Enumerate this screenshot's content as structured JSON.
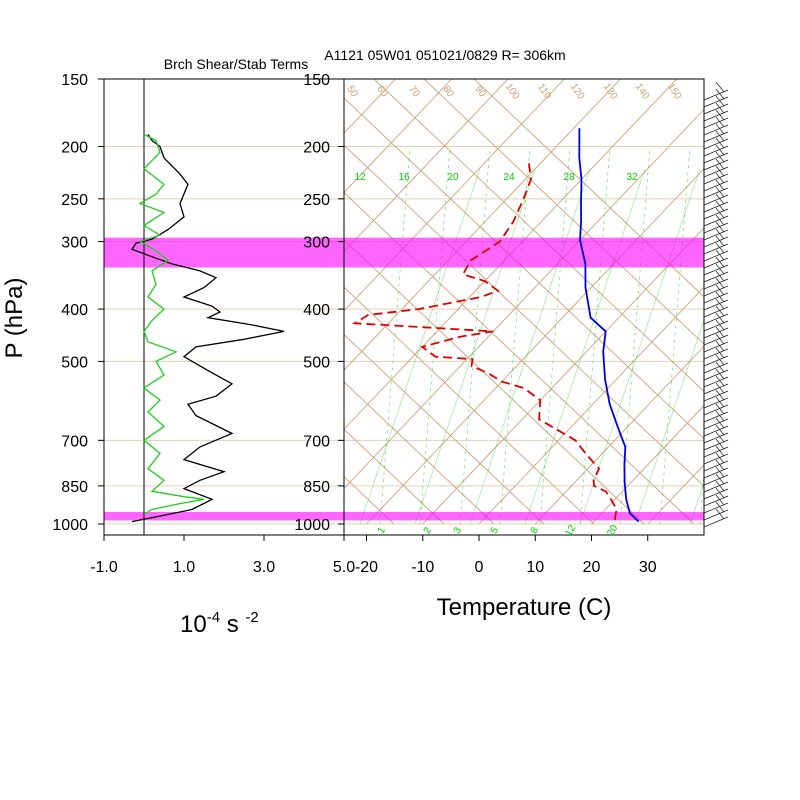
{
  "header": {
    "left_title": "Brch Shear/Stab Terms",
    "right_title": "A1121 05W01 051021/0829 R= 306km"
  },
  "colors": {
    "shear": "#000000",
    "stability": "#22cc22",
    "temperature": "#0000dd",
    "dewpoint": "#dd0000",
    "highlight": "#ff00ff",
    "skewt_lines": "#c9a27a",
    "mixing_ratio": "#00cc00"
  },
  "chart_data": [
    {
      "type": "line",
      "title": "Brch Shear/Stab Terms",
      "xlabel": "10-4 s -2",
      "xlabel_parts": {
        "base": "10",
        "exp1": "-4",
        "mid": " s ",
        "exp2": "-2"
      },
      "ylabel": "P (hPa)",
      "y_scale": "log",
      "y_direction": "inverted",
      "ylim": [
        150,
        1000
      ],
      "xlim": [
        -1.0,
        5.0
      ],
      "x_ticks": [
        "-1.0",
        "1.0",
        "3.0",
        "5.0"
      ],
      "y_ticks": [
        150,
        200,
        250,
        300,
        400,
        500,
        700,
        850,
        1000
      ],
      "y_tick_labels": [
        "150",
        "200",
        "250",
        "300",
        "400",
        "500",
        "700",
        "850",
        "1000"
      ],
      "zero_line": 0,
      "highlight_bands_hPa": [
        [
          295,
          335
        ],
        [
          950,
          985
        ]
      ],
      "series": [
        {
          "key": "shear",
          "color": "#000000",
          "points": [
            [
              0.1,
              190
            ],
            [
              0.2,
              195
            ],
            [
              0.4,
              200
            ],
            [
              0.5,
              210
            ],
            [
              0.9,
              225
            ],
            [
              1.1,
              235
            ],
            [
              0.9,
              255
            ],
            [
              1.0,
              270
            ],
            [
              0.6,
              285
            ],
            [
              0.2,
              297
            ],
            [
              -0.2,
              302
            ],
            [
              -0.3,
              310
            ],
            [
              0.3,
              322
            ],
            [
              0.7,
              330
            ],
            [
              1.4,
              340
            ],
            [
              1.8,
              350
            ],
            [
              1.5,
              365
            ],
            [
              1.0,
              380
            ],
            [
              1.7,
              395
            ],
            [
              1.9,
              405
            ],
            [
              1.6,
              415
            ],
            [
              2.7,
              428
            ],
            [
              3.5,
              440
            ],
            [
              2.5,
              455
            ],
            [
              1.3,
              470
            ],
            [
              1.0,
              490
            ],
            [
              1.6,
              520
            ],
            [
              2.2,
              550
            ],
            [
              1.8,
              580
            ],
            [
              1.1,
              600
            ],
            [
              1.3,
              630
            ],
            [
              2.2,
              680
            ],
            [
              1.4,
              720
            ],
            [
              1.0,
              760
            ],
            [
              2.0,
              800
            ],
            [
              1.4,
              830
            ],
            [
              1.0,
              860
            ],
            [
              1.7,
              900
            ],
            [
              1.2,
              940
            ],
            [
              0.3,
              970
            ],
            [
              -0.3,
              990
            ]
          ]
        },
        {
          "key": "stability",
          "color": "#22cc22",
          "points": [
            [
              0.0,
              190
            ],
            [
              0.3,
              195
            ],
            [
              0.4,
              205
            ],
            [
              0.0,
              220
            ],
            [
              0.5,
              235
            ],
            [
              0.3,
              245
            ],
            [
              -0.1,
              255
            ],
            [
              0.5,
              265
            ],
            [
              0.0,
              280
            ],
            [
              0.4,
              292
            ],
            [
              -0.1,
              300
            ],
            [
              0.3,
              312
            ],
            [
              0.6,
              325
            ],
            [
              0.2,
              340
            ],
            [
              0.3,
              360
            ],
            [
              0.1,
              380
            ],
            [
              0.5,
              400
            ],
            [
              0.2,
              420
            ],
            [
              0.0,
              440
            ],
            [
              0.1,
              460
            ],
            [
              0.8,
              480
            ],
            [
              0.3,
              500
            ],
            [
              0.5,
              530
            ],
            [
              0.0,
              560
            ],
            [
              0.4,
              590
            ],
            [
              0.1,
              620
            ],
            [
              0.5,
              660
            ],
            [
              0.0,
              700
            ],
            [
              0.4,
              740
            ],
            [
              0.1,
              790
            ],
            [
              0.5,
              830
            ],
            [
              0.2,
              870
            ],
            [
              1.0,
              890
            ],
            [
              1.5,
              900
            ],
            [
              0.8,
              920
            ],
            [
              0.2,
              940
            ],
            [
              0.0,
              960
            ]
          ]
        }
      ]
    },
    {
      "type": "line",
      "title": "A1121 05W01 051021/0829 R= 306km",
      "xlabel": "Temperature (C)",
      "ylabel": "P (hPa)",
      "chart_kind": "skew-T log-P",
      "y_scale": "log",
      "y_direction": "inverted",
      "ylim": [
        150,
        1000
      ],
      "xlim_at_1000hPa": [
        -24,
        40
      ],
      "x_ticks": [
        "-20",
        "-10",
        "0",
        "10",
        "20",
        "30"
      ],
      "y_ticks": [
        150,
        200,
        250,
        300,
        400,
        500,
        700,
        850,
        1000
      ],
      "y_tick_labels": [
        "150",
        "200",
        "250",
        "300",
        "400",
        "500",
        "700",
        "850",
        "1000"
      ],
      "highlight_bands_hPa": [
        [
          295,
          335
        ],
        [
          950,
          985
        ]
      ],
      "mixing_ratio_labels_top": [
        "12",
        "16",
        "20",
        "24",
        "28",
        "32"
      ],
      "mixing_ratio_labels_bottom": [
        "1",
        "2",
        "3",
        "5",
        "8",
        "12",
        "20"
      ],
      "adiabat_labels": [
        "50",
        "60",
        "70",
        "80",
        "90",
        "100",
        "110",
        "120",
        "130",
        "140",
        "150"
      ],
      "series": [
        {
          "key": "temperature",
          "color": "#0000dd",
          "style": "solid",
          "points": [
            [
              -49,
              185
            ],
            [
              -44,
              210
            ],
            [
              -40,
              230
            ],
            [
              -36,
              255
            ],
            [
              -33,
              275
            ],
            [
              -30,
              298
            ],
            [
              -25,
              330
            ],
            [
              -21,
              365
            ],
            [
              -15,
              415
            ],
            [
              -10,
              440
            ],
            [
              -7,
              480
            ],
            [
              -2,
              540
            ],
            [
              3,
              600
            ],
            [
              9,
              670
            ],
            [
              13,
              720
            ],
            [
              16,
              780
            ],
            [
              19,
              840
            ],
            [
              22,
              900
            ],
            [
              25,
              955
            ],
            [
              28,
              990
            ]
          ]
        },
        {
          "key": "dewpoint",
          "color": "#dd0000",
          "style": "dashed",
          "points": [
            [
              -52,
              215
            ],
            [
              -49,
              230
            ],
            [
              -47,
              250
            ],
            [
              -45,
              275
            ],
            [
              -44,
              300
            ],
            [
              -46,
              325
            ],
            [
              -45,
              345
            ],
            [
              -40,
              355
            ],
            [
              -36,
              370
            ],
            [
              -38,
              380
            ],
            [
              -47,
              400
            ],
            [
              -55,
              410
            ],
            [
              -56,
              425
            ],
            [
              -47,
              430
            ],
            [
              -30,
              440
            ],
            [
              -35,
              450
            ],
            [
              -40,
              470
            ],
            [
              -36,
              490
            ],
            [
              -29,
              495
            ],
            [
              -28,
              510
            ],
            [
              -24,
              525
            ],
            [
              -20,
              545
            ],
            [
              -15,
              560
            ],
            [
              -10,
              590
            ],
            [
              -7,
              640
            ],
            [
              3,
              700
            ],
            [
              7,
              740
            ],
            [
              12,
              790
            ],
            [
              13,
              830
            ],
            [
              14,
              850
            ],
            [
              17,
              870
            ],
            [
              20,
              910
            ],
            [
              22,
              940
            ],
            [
              23,
              970
            ],
            [
              24,
              995
            ]
          ]
        }
      ]
    }
  ]
}
